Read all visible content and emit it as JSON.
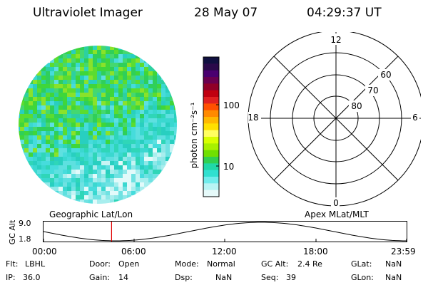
{
  "header": {
    "title": "Ultraviolet Imager",
    "date": "28 May 07",
    "time": "04:29:37 UT"
  },
  "colorbar": {
    "unit_label": "photon cm⁻²s⁻¹",
    "ticks": [
      "100",
      "10"
    ],
    "colors": [
      "#101040",
      "#2a0a4a",
      "#4a0070",
      "#6a0050",
      "#900028",
      "#c00010",
      "#e02020",
      "#ff5000",
      "#ff8a00",
      "#ffb800",
      "#ffe000",
      "#ffff60",
      "#d8ff00",
      "#a8f000",
      "#70e000",
      "#30d050",
      "#20d8a8",
      "#30e0d0",
      "#70ecec",
      "#b8f4f4",
      "#e6fafa"
    ]
  },
  "polar": {
    "mlt_labels": {
      "top": "12",
      "left": "18",
      "right": "6",
      "bottom": "0"
    },
    "lat_labels": [
      "60",
      "70",
      "80"
    ]
  },
  "timeline": {
    "left_label": "Geographic Lat/Lon",
    "right_label": "Apex MLat/MLT",
    "axis_title": "GC Alt",
    "y_ticks": [
      "9.0",
      "1.8"
    ],
    "x_ticks": [
      "00:00",
      "06:00",
      "12:00",
      "18:00",
      "23:59"
    ],
    "marker_time": "04:29:37"
  },
  "footer": {
    "filter": {
      "label": "Flt:",
      "value": "LBHL"
    },
    "door": {
      "label": "Door:",
      "value": "Open"
    },
    "mode": {
      "label": "Mode:",
      "value": "Normal"
    },
    "gc_alt": {
      "label": "GC Alt:",
      "value": "2.4 Re"
    },
    "glat": {
      "label": "GLat:",
      "value": "NaN"
    },
    "ip": {
      "label": "IP:",
      "value": "36.0"
    },
    "gain": {
      "label": "Gain:",
      "value": "14"
    },
    "dsp": {
      "label": "Dsp:",
      "value": "NaN"
    },
    "seq": {
      "label": "Seq:",
      "value": "39"
    },
    "glon": {
      "label": "GLon:",
      "value": "NaN"
    }
  }
}
